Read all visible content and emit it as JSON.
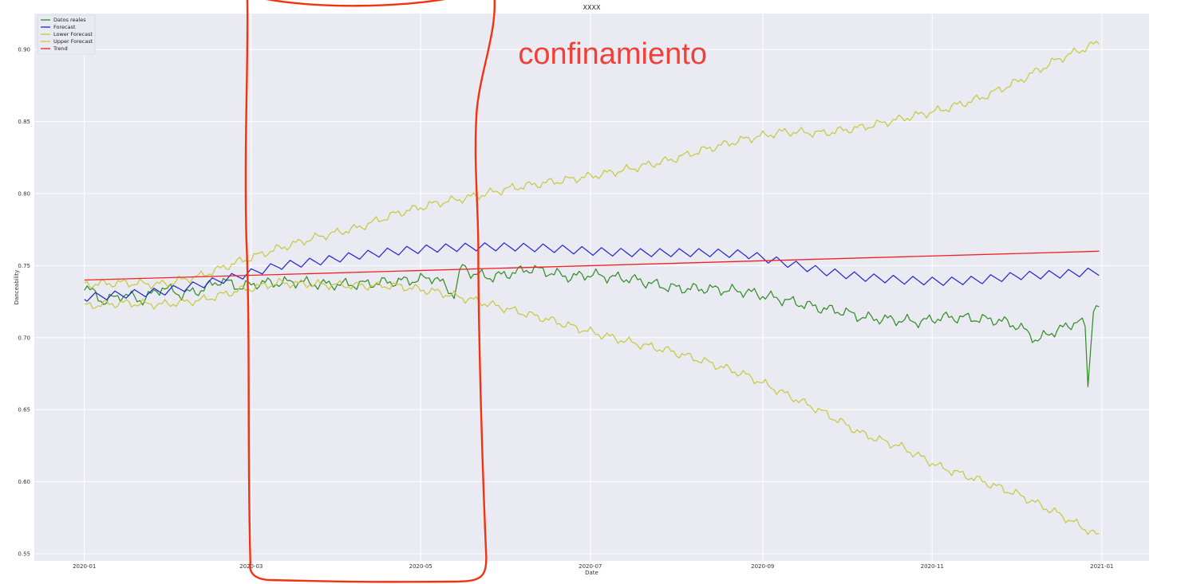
{
  "chart_data": {
    "type": "line",
    "title": "XXXX",
    "xlabel": "Date",
    "ylabel": "Danceability",
    "x_range": [
      "2020-01-01",
      "2020-12-31"
    ],
    "ylim": [
      0.545,
      0.925
    ],
    "xlim": [
      "2019-12-14",
      "2021-01-18"
    ],
    "x_ticks": [
      "2020-01",
      "2020-03",
      "2020-05",
      "2020-07",
      "2020-09",
      "2020-11",
      "2021-01"
    ],
    "x_tick_dates": [
      "2020-01-01",
      "2020-03-01",
      "2020-05-01",
      "2020-07-01",
      "2020-09-01",
      "2020-11-01",
      "2021-01-01"
    ],
    "y_ticks": [
      0.55,
      0.6,
      0.65,
      0.7,
      0.75,
      0.8,
      0.85,
      0.9
    ],
    "y_tick_labels": [
      "0.55",
      "0.60",
      "0.65",
      "0.70",
      "0.75",
      "0.80",
      "0.85",
      "0.90"
    ],
    "grid": true,
    "legend_position": "top-left",
    "background": "#eaeaf2",
    "series": [
      {
        "name": "Datos reales",
        "color": "#2e8b22",
        "points": [
          [
            "2020-01-01",
            0.736
          ],
          [
            "2020-01-08",
            0.725
          ],
          [
            "2020-01-15",
            0.73
          ],
          [
            "2020-01-22",
            0.726
          ],
          [
            "2020-01-29",
            0.735
          ],
          [
            "2020-02-05",
            0.73
          ],
          [
            "2020-02-12",
            0.733
          ],
          [
            "2020-02-19",
            0.74
          ],
          [
            "2020-02-26",
            0.735
          ],
          [
            "2020-03-04",
            0.738
          ],
          [
            "2020-03-11",
            0.738
          ],
          [
            "2020-03-18",
            0.739
          ],
          [
            "2020-03-25",
            0.737
          ],
          [
            "2020-04-01",
            0.737
          ],
          [
            "2020-04-08",
            0.737
          ],
          [
            "2020-04-15",
            0.738
          ],
          [
            "2020-04-22",
            0.739
          ],
          [
            "2020-04-29",
            0.74
          ],
          [
            "2020-05-06",
            0.742
          ],
          [
            "2020-05-13",
            0.73
          ],
          [
            "2020-05-16",
            0.75
          ],
          [
            "2020-05-20",
            0.744
          ],
          [
            "2020-05-27",
            0.742
          ],
          [
            "2020-06-03",
            0.745
          ],
          [
            "2020-06-10",
            0.748
          ],
          [
            "2020-06-17",
            0.745
          ],
          [
            "2020-06-24",
            0.742
          ],
          [
            "2020-07-01",
            0.744
          ],
          [
            "2020-07-08",
            0.742
          ],
          [
            "2020-07-15",
            0.741
          ],
          [
            "2020-07-22",
            0.738
          ],
          [
            "2020-07-29",
            0.735
          ],
          [
            "2020-08-05",
            0.734
          ],
          [
            "2020-08-12",
            0.734
          ],
          [
            "2020-08-19",
            0.733
          ],
          [
            "2020-08-26",
            0.732
          ],
          [
            "2020-09-02",
            0.729
          ],
          [
            "2020-09-09",
            0.726
          ],
          [
            "2020-09-16",
            0.723
          ],
          [
            "2020-09-23",
            0.72
          ],
          [
            "2020-09-30",
            0.718
          ],
          [
            "2020-10-07",
            0.714
          ],
          [
            "2020-10-14",
            0.713
          ],
          [
            "2020-10-21",
            0.712
          ],
          [
            "2020-10-28",
            0.711
          ],
          [
            "2020-11-04",
            0.714
          ],
          [
            "2020-11-11",
            0.714
          ],
          [
            "2020-11-18",
            0.713
          ],
          [
            "2020-11-25",
            0.712
          ],
          [
            "2020-12-02",
            0.708
          ],
          [
            "2020-12-09",
            0.698
          ],
          [
            "2020-12-13",
            0.703
          ],
          [
            "2020-12-20",
            0.708
          ],
          [
            "2020-12-23",
            0.712
          ],
          [
            "2020-12-26",
            0.708
          ],
          [
            "2020-12-27",
            0.666
          ],
          [
            "2020-12-29",
            0.722
          ],
          [
            "2020-12-31",
            0.72
          ]
        ]
      },
      {
        "name": "Forecast",
        "color": "#1f22d6",
        "points": [
          [
            "2020-01-01",
            0.728
          ],
          [
            "2020-01-15",
            0.73
          ],
          [
            "2020-01-29",
            0.732
          ],
          [
            "2020-02-12",
            0.737
          ],
          [
            "2020-02-26",
            0.743
          ],
          [
            "2020-03-11",
            0.75
          ],
          [
            "2020-03-25",
            0.753
          ],
          [
            "2020-04-08",
            0.757
          ],
          [
            "2020-04-22",
            0.76
          ],
          [
            "2020-05-06",
            0.762
          ],
          [
            "2020-05-20",
            0.763
          ],
          [
            "2020-06-03",
            0.763
          ],
          [
            "2020-06-17",
            0.762
          ],
          [
            "2020-07-01",
            0.76
          ],
          [
            "2020-07-15",
            0.759
          ],
          [
            "2020-07-29",
            0.759
          ],
          [
            "2020-08-12",
            0.759
          ],
          [
            "2020-08-26",
            0.758
          ],
          [
            "2020-09-02",
            0.755
          ],
          [
            "2020-09-09",
            0.752
          ],
          [
            "2020-09-23",
            0.746
          ],
          [
            "2020-10-07",
            0.742
          ],
          [
            "2020-10-21",
            0.74
          ],
          [
            "2020-11-04",
            0.739
          ],
          [
            "2020-11-18",
            0.74
          ],
          [
            "2020-12-02",
            0.743
          ],
          [
            "2020-12-16",
            0.744
          ],
          [
            "2020-12-31",
            0.746
          ]
        ]
      },
      {
        "name": "Lower Forecast",
        "color": "#c6c83a",
        "points": [
          [
            "2020-01-01",
            0.722
          ],
          [
            "2020-01-15",
            0.724
          ],
          [
            "2020-01-29",
            0.723
          ],
          [
            "2020-02-12",
            0.726
          ],
          [
            "2020-02-26",
            0.733
          ],
          [
            "2020-03-11",
            0.738
          ],
          [
            "2020-03-25",
            0.737
          ],
          [
            "2020-04-08",
            0.736
          ],
          [
            "2020-04-22",
            0.736
          ],
          [
            "2020-05-06",
            0.732
          ],
          [
            "2020-05-20",
            0.726
          ],
          [
            "2020-06-03",
            0.719
          ],
          [
            "2020-06-17",
            0.712
          ],
          [
            "2020-07-01",
            0.704
          ],
          [
            "2020-07-15",
            0.697
          ],
          [
            "2020-07-29",
            0.691
          ],
          [
            "2020-08-12",
            0.683
          ],
          [
            "2020-08-26",
            0.674
          ],
          [
            "2020-09-09",
            0.661
          ],
          [
            "2020-09-23",
            0.648
          ],
          [
            "2020-10-07",
            0.633
          ],
          [
            "2020-10-21",
            0.624
          ],
          [
            "2020-11-04",
            0.61
          ],
          [
            "2020-11-18",
            0.601
          ],
          [
            "2020-12-02",
            0.591
          ],
          [
            "2020-12-16",
            0.578
          ],
          [
            "2020-12-31",
            0.562
          ]
        ]
      },
      {
        "name": "Upper Forecast",
        "color": "#c6c83a",
        "points": [
          [
            "2020-01-01",
            0.737
          ],
          [
            "2020-01-15",
            0.738
          ],
          [
            "2020-01-29",
            0.737
          ],
          [
            "2020-02-12",
            0.743
          ],
          [
            "2020-02-26",
            0.753
          ],
          [
            "2020-03-11",
            0.762
          ],
          [
            "2020-03-25",
            0.77
          ],
          [
            "2020-04-08",
            0.776
          ],
          [
            "2020-04-22",
            0.786
          ],
          [
            "2020-05-06",
            0.793
          ],
          [
            "2020-05-20",
            0.798
          ],
          [
            "2020-06-03",
            0.804
          ],
          [
            "2020-06-17",
            0.808
          ],
          [
            "2020-07-01",
            0.812
          ],
          [
            "2020-07-15",
            0.817
          ],
          [
            "2020-07-29",
            0.823
          ],
          [
            "2020-08-12",
            0.831
          ],
          [
            "2020-08-26",
            0.838
          ],
          [
            "2020-09-09",
            0.843
          ],
          [
            "2020-09-23",
            0.842
          ],
          [
            "2020-10-07",
            0.846
          ],
          [
            "2020-10-21",
            0.852
          ],
          [
            "2020-11-04",
            0.858
          ],
          [
            "2020-11-18",
            0.866
          ],
          [
            "2020-12-02",
            0.878
          ],
          [
            "2020-12-16",
            0.893
          ],
          [
            "2020-12-31",
            0.905
          ]
        ]
      },
      {
        "name": "Trend",
        "color": "#ee2222",
        "points": [
          [
            "2020-01-01",
            0.74
          ],
          [
            "2020-12-31",
            0.76
          ]
        ]
      }
    ],
    "annotation": {
      "text": "confinamiento",
      "color": "#f0403a",
      "region": [
        "2020-02-28",
        "2020-05-24"
      ]
    }
  }
}
